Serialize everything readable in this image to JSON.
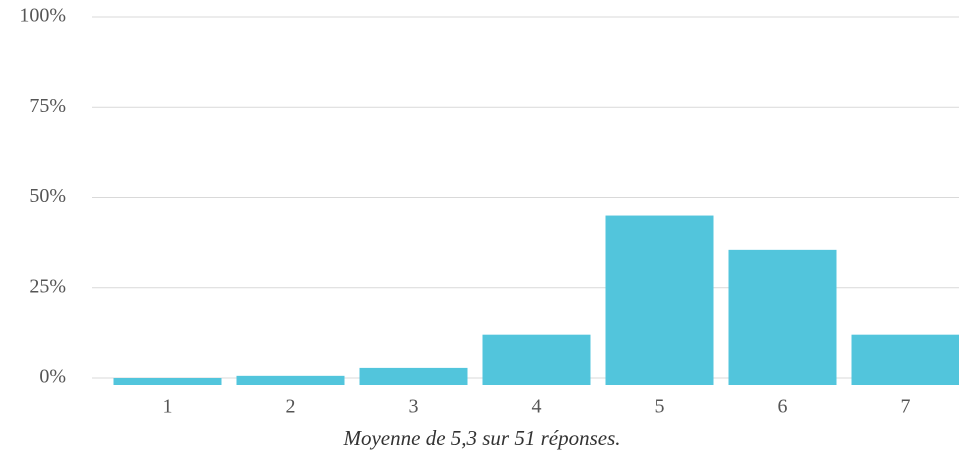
{
  "chart_data": {
    "type": "bar",
    "caption": "Moyenne de 5,3 sur 51 réponses.",
    "categories": [
      "1",
      "2",
      "3",
      "4",
      "5",
      "6",
      "7"
    ],
    "values": [
      0,
      0.6,
      2.8,
      12,
      45,
      35.5,
      12
    ],
    "color": "#52c5dc",
    "ylim": [
      0,
      100
    ],
    "yticks": [
      {
        "value": 0,
        "label": "0%"
      },
      {
        "value": 25,
        "label": "25%"
      },
      {
        "value": 50,
        "label": "50%"
      },
      {
        "value": 75,
        "label": "75%"
      },
      {
        "value": 100,
        "label": "100%"
      }
    ],
    "grid": true
  }
}
